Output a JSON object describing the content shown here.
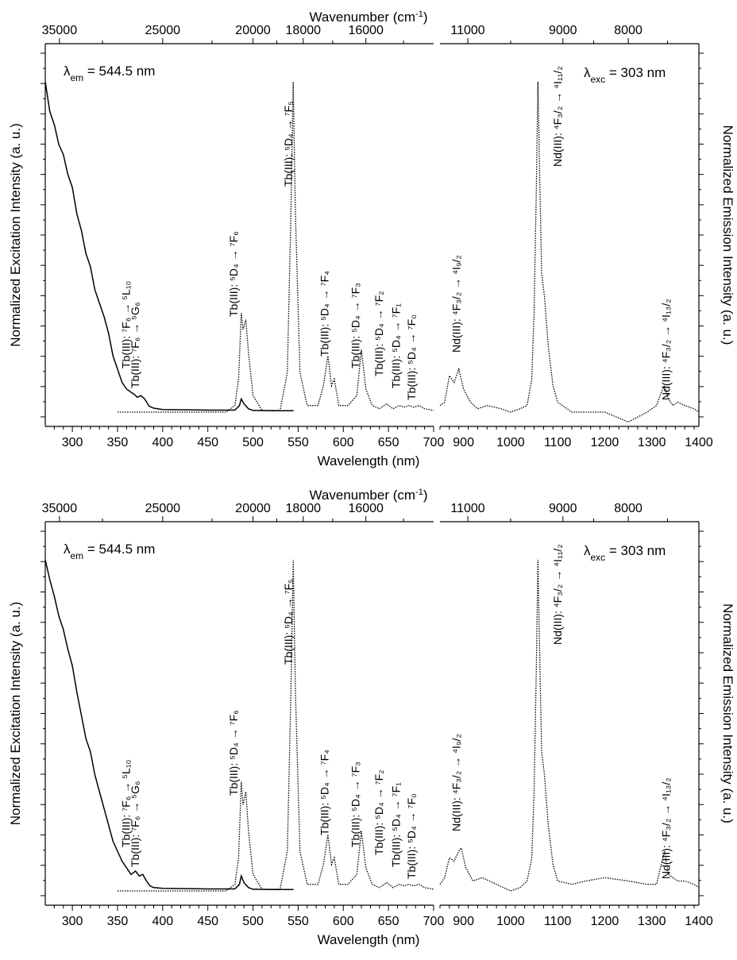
{
  "chart_data": [
    {
      "type": "line",
      "panel": "top",
      "xlabel": "Wavelength (nm)",
      "top_xlabel": "Wavenumber (cm",
      "top_xlabel_sup": "-1",
      "top_xlabel_end": ")",
      "ylabel_left": "Normalized Excitation Intensity (a. u.)",
      "ylabel_right": "Normalized Emission Intensity (a. u.)",
      "left_xlim": [
        270,
        700
      ],
      "right_xlim": [
        850,
        1400
      ],
      "xticks_left": [
        300,
        350,
        400,
        450,
        500,
        550,
        600,
        650,
        700
      ],
      "xticks_right": [
        900,
        1000,
        1100,
        1200,
        1300,
        1400
      ],
      "top_ticks_left": [
        "35000",
        "25000",
        "20000",
        "18000",
        "16000"
      ],
      "top_ticks_left_positions_nm": [
        285.7,
        400,
        500,
        555.6,
        625
      ],
      "top_ticks_right": [
        "11000",
        "9000",
        "8000"
      ],
      "top_ticks_right_positions_nm": [
        909.1,
        1111.1,
        1250
      ],
      "corner_left": {
        "prefix": "λ",
        "sub": "em",
        "text": " = 544.5 nm"
      },
      "corner_right": {
        "prefix": "λ",
        "sub": "exc",
        "text": " = 303 nm"
      },
      "series": [
        {
          "style": "solid",
          "x": [
            270,
            275,
            280,
            285,
            290,
            295,
            300,
            305,
            310,
            315,
            320,
            325,
            330,
            335,
            340,
            345,
            350,
            355,
            360,
            365,
            368,
            372,
            376,
            380,
            385,
            390,
            400,
            450,
            480,
            485,
            487,
            490,
            495,
            500,
            520,
            545
          ],
          "y": [
            1.0,
            0.91,
            0.87,
            0.81,
            0.78,
            0.72,
            0.68,
            0.6,
            0.55,
            0.48,
            0.44,
            0.37,
            0.33,
            0.29,
            0.24,
            0.17,
            0.13,
            0.09,
            0.07,
            0.06,
            0.055,
            0.045,
            0.05,
            0.04,
            0.018,
            0.012,
            0.008,
            0.006,
            0.006,
            0.02,
            0.04,
            0.025,
            0.01,
            0.005,
            0.004,
            0.004
          ]
        },
        {
          "style": "dotted",
          "x": [
            350,
            400,
            470,
            480,
            484,
            487,
            489,
            492,
            495,
            500,
            510,
            530,
            538,
            542,
            544.5,
            547,
            552,
            560,
            572,
            578,
            583,
            587,
            590,
            595,
            605,
            615,
            620,
            625,
            632,
            640,
            648,
            655,
            662,
            668,
            672,
            678,
            684,
            690,
            700
          ],
          "y": [
            0.0,
            0.0,
            0.0,
            0.02,
            0.1,
            0.3,
            0.25,
            0.28,
            0.18,
            0.05,
            0.005,
            0.005,
            0.12,
            0.6,
            1.0,
            0.6,
            0.12,
            0.02,
            0.02,
            0.08,
            0.17,
            0.08,
            0.1,
            0.02,
            0.02,
            0.05,
            0.19,
            0.07,
            0.02,
            0.01,
            0.025,
            0.01,
            0.02,
            0.015,
            0.02,
            0.015,
            0.02,
            0.01,
            0.005
          ]
        },
        {
          "style": "dotted",
          "x": [
            850,
            860,
            870,
            880,
            890,
            900,
            915,
            930,
            950,
            980,
            1000,
            1020,
            1035,
            1045,
            1050,
            1055,
            1058,
            1062,
            1066,
            1072,
            1080,
            1090,
            1100,
            1130,
            1160,
            1200,
            1250,
            1290,
            1310,
            1320,
            1327,
            1335,
            1345,
            1355,
            1370,
            1390,
            1400
          ],
          "y": [
            0.02,
            0.03,
            0.11,
            0.09,
            0.13,
            0.07,
            0.03,
            0.01,
            0.02,
            0.01,
            0.0,
            0.01,
            0.02,
            0.1,
            0.3,
            0.7,
            1.0,
            0.7,
            0.42,
            0.35,
            0.2,
            0.08,
            0.03,
            0.0,
            0.0,
            0.0,
            -0.03,
            0.0,
            0.02,
            0.06,
            0.08,
            0.04,
            0.02,
            0.03,
            0.02,
            0.01,
            0.0
          ]
        }
      ],
      "annotations": [
        {
          "text": "Tb(III): ⁷F₆ → ⁵L₁₀",
          "x_nm": 368
        },
        {
          "text": "Tb(III): ⁷F₆ → ⁵G₆",
          "x_nm": 378
        },
        {
          "text": "Tb(III): ⁵D₄ → ⁷F₆",
          "x_nm": 487
        },
        {
          "text": "Tb(III): ⁵D₄ → ⁷F₅",
          "x_nm": 548
        },
        {
          "text": "Tb(III): ⁵D₄ → ⁷F₄",
          "x_nm": 588
        },
        {
          "text": "Tb(III): ⁵D₄ → ⁷F₃",
          "x_nm": 622
        },
        {
          "text": "Tb(III): ⁵D₄ → ⁷F₂",
          "x_nm": 648
        },
        {
          "text": "Tb(III): ⁵D₄ → ⁷F₁",
          "x_nm": 667
        },
        {
          "text": "Tb(III): ⁵D₄ → ⁷F₀",
          "x_nm": 684
        },
        {
          "text": "Nd(III): ⁴F₃/₂ → ⁴I₉/₂",
          "x_nm": 890
        },
        {
          "text": "Nd(III): ⁴F₃/₂ → ⁴I₁₁/₂",
          "x_nm": 1105
        },
        {
          "text": "Nd(III): ⁴F₃/₂ → ⁴I₁₃/₂",
          "x_nm": 1335
        }
      ]
    },
    {
      "type": "line",
      "panel": "bottom",
      "xlabel": "Wavelength (nm)",
      "top_xlabel": "Wavenumber (cm",
      "top_xlabel_sup": "-1",
      "top_xlabel_end": ")",
      "ylabel_left": "Normalized Excitation Intensity (a. u.)",
      "ylabel_right": "Normalized Emission Intensity (a. u.)",
      "left_xlim": [
        270,
        700
      ],
      "right_xlim": [
        850,
        1400
      ],
      "xticks_left": [
        300,
        350,
        400,
        450,
        500,
        550,
        600,
        650,
        700
      ],
      "xticks_right": [
        900,
        1000,
        1100,
        1200,
        1300,
        1400
      ],
      "top_ticks_left": [
        "35000",
        "25000",
        "20000",
        "18000",
        "16000"
      ],
      "top_ticks_left_positions_nm": [
        285.7,
        400,
        500,
        555.6,
        625
      ],
      "top_ticks_right": [
        "11000",
        "9000",
        "8000"
      ],
      "top_ticks_right_positions_nm": [
        909.1,
        1111.1,
        1250
      ],
      "corner_left": {
        "prefix": "λ",
        "sub": "em",
        "text": " = 544.5 nm"
      },
      "corner_right": {
        "prefix": "λ",
        "sub": "exc",
        "text": " = 303 nm"
      },
      "series": [
        {
          "style": "solid",
          "x": [
            270,
            275,
            280,
            285,
            290,
            295,
            300,
            305,
            310,
            315,
            320,
            325,
            330,
            335,
            340,
            345,
            350,
            355,
            360,
            365,
            370,
            374,
            378,
            382,
            386,
            390,
            400,
            450,
            480,
            485,
            487,
            490,
            495,
            500,
            520,
            545
          ],
          "y": [
            1.0,
            0.94,
            0.89,
            0.83,
            0.79,
            0.73,
            0.68,
            0.6,
            0.53,
            0.46,
            0.42,
            0.35,
            0.3,
            0.25,
            0.2,
            0.15,
            0.12,
            0.09,
            0.07,
            0.05,
            0.06,
            0.045,
            0.05,
            0.03,
            0.015,
            0.01,
            0.008,
            0.006,
            0.006,
            0.02,
            0.045,
            0.025,
            0.01,
            0.005,
            0.004,
            0.004
          ]
        },
        {
          "style": "dotted",
          "x": [
            350,
            400,
            470,
            480,
            484,
            487,
            489,
            492,
            495,
            500,
            510,
            530,
            538,
            542,
            544.5,
            547,
            552,
            560,
            572,
            578,
            583,
            587,
            590,
            595,
            605,
            615,
            620,
            625,
            632,
            640,
            648,
            655,
            662,
            668,
            672,
            678,
            684,
            690,
            700
          ],
          "y": [
            0.0,
            0.0,
            0.0,
            0.02,
            0.1,
            0.33,
            0.26,
            0.3,
            0.18,
            0.05,
            0.005,
            0.005,
            0.12,
            0.6,
            1.0,
            0.6,
            0.12,
            0.02,
            0.02,
            0.08,
            0.17,
            0.08,
            0.1,
            0.02,
            0.02,
            0.05,
            0.18,
            0.07,
            0.02,
            0.01,
            0.025,
            0.01,
            0.02,
            0.015,
            0.02,
            0.015,
            0.02,
            0.01,
            0.005
          ]
        },
        {
          "style": "dotted",
          "x": [
            850,
            860,
            870,
            880,
            890,
            895,
            905,
            920,
            940,
            970,
            1000,
            1020,
            1035,
            1045,
            1050,
            1055,
            1058,
            1062,
            1066,
            1072,
            1080,
            1090,
            1100,
            1130,
            1160,
            1200,
            1250,
            1290,
            1310,
            1320,
            1327,
            1335,
            1345,
            1355,
            1370,
            1390,
            1400
          ],
          "y": [
            0.02,
            0.04,
            0.1,
            0.09,
            0.12,
            0.13,
            0.07,
            0.03,
            0.04,
            0.02,
            0.0,
            0.01,
            0.03,
            0.1,
            0.3,
            0.7,
            1.0,
            0.7,
            0.42,
            0.35,
            0.2,
            0.08,
            0.03,
            0.02,
            0.03,
            0.04,
            0.03,
            0.02,
            0.02,
            0.08,
            0.12,
            0.05,
            0.04,
            0.03,
            0.03,
            0.02,
            0.01
          ]
        }
      ],
      "annotations": [
        {
          "text": "Tb(III): ⁷F₆ → ⁵L₁₀",
          "x_nm": 368
        },
        {
          "text": "Tb(III): ⁷F₆ → ⁵G₆",
          "x_nm": 378
        },
        {
          "text": "Tb(III): ⁵D₄ → ⁷F₆",
          "x_nm": 487
        },
        {
          "text": "Tb(III): ⁵D₄ → ⁷F₅",
          "x_nm": 548
        },
        {
          "text": "Tb(III): ⁵D₄ → ⁷F₄",
          "x_nm": 588
        },
        {
          "text": "Tb(III): ⁵D₄ → ⁷F₃",
          "x_nm": 622
        },
        {
          "text": "Tb(III): ⁵D₄ → ⁷F₂",
          "x_nm": 648
        },
        {
          "text": "Tb(III): ⁵D₄ → ⁷F₁",
          "x_nm": 667
        },
        {
          "text": "Tb(III): ⁵D₄ → ⁷F₀",
          "x_nm": 684
        },
        {
          "text": "Nd(III): ⁴F₃/₂ → ⁴I₉/₂",
          "x_nm": 890
        },
        {
          "text": "Nd(III): ⁴F₃/₂ → ⁴I₁₁/₂",
          "x_nm": 1105
        },
        {
          "text": "Nd(III): ⁴F₃/₂ → ⁴I₁₃/₂",
          "x_nm": 1335
        }
      ]
    }
  ]
}
